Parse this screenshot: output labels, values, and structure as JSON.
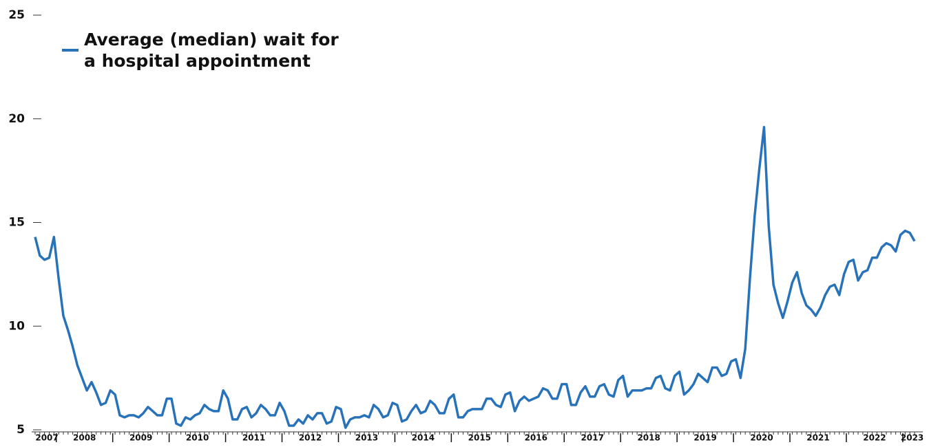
{
  "chart_data": {
    "type": "line",
    "categories": [
      null,
      null,
      "2007",
      null,
      null,
      null,
      null,
      null,
      null,
      null,
      "2008",
      null,
      null,
      null,
      null,
      null,
      null,
      null,
      null,
      null,
      null,
      null,
      "2009",
      null,
      null,
      null,
      null,
      null,
      null,
      null,
      null,
      null,
      null,
      null,
      "2010",
      null,
      null,
      null,
      null,
      null,
      null,
      null,
      null,
      null,
      null,
      null,
      "2011",
      null,
      null,
      null,
      null,
      null,
      null,
      null,
      null,
      null,
      null,
      null,
      "2012",
      null,
      null,
      null,
      null,
      null,
      null,
      null,
      null,
      null,
      null,
      null,
      "2013",
      null,
      null,
      null,
      null,
      null,
      null,
      null,
      null,
      null,
      null,
      null,
      "2014",
      null,
      null,
      null,
      null,
      null,
      null,
      null,
      null,
      null,
      null,
      null,
      "2015",
      null,
      null,
      null,
      null,
      null,
      null,
      null,
      null,
      null,
      null,
      null,
      "2016",
      null,
      null,
      null,
      null,
      null,
      null,
      null,
      null,
      null,
      null,
      null,
      "2017",
      null,
      null,
      null,
      null,
      null,
      null,
      null,
      null,
      null,
      null,
      null,
      "2018",
      null,
      null,
      null,
      null,
      null,
      null,
      null,
      null,
      null,
      null,
      null,
      "2019",
      null,
      null,
      null,
      null,
      null,
      null,
      null,
      null,
      null,
      null,
      null,
      "2020",
      null,
      null,
      null,
      null,
      null,
      null,
      null,
      null,
      null,
      null,
      null,
      "2021",
      null,
      null,
      null,
      null,
      null,
      null,
      null,
      null,
      null,
      null,
      null,
      "2022",
      null,
      null,
      null,
      null,
      null,
      null,
      null,
      "2023",
      null
    ],
    "series": [
      {
        "name": "Average (median) wait for a hospital appointment",
        "color": "#2872b9",
        "values": [
          14.3,
          13.4,
          13.2,
          13.3,
          14.3,
          12.3,
          10.5,
          9.8,
          9.0,
          8.1,
          7.5,
          6.9,
          7.3,
          6.8,
          6.2,
          6.3,
          6.9,
          6.7,
          5.7,
          5.6,
          5.7,
          5.7,
          5.6,
          5.8,
          6.1,
          5.9,
          5.7,
          5.7,
          6.5,
          6.5,
          5.3,
          5.2,
          5.6,
          5.5,
          5.7,
          5.8,
          6.2,
          6.0,
          5.9,
          5.9,
          6.9,
          6.5,
          5.5,
          5.5,
          6.0,
          6.1,
          5.6,
          5.8,
          6.2,
          6.0,
          5.7,
          5.7,
          6.3,
          5.9,
          5.2,
          5.2,
          5.5,
          5.3,
          5.7,
          5.5,
          5.8,
          5.8,
          5.3,
          5.4,
          6.1,
          6.0,
          5.1,
          5.5,
          5.6,
          5.6,
          5.7,
          5.6,
          6.2,
          6.0,
          5.6,
          5.7,
          6.3,
          6.2,
          5.4,
          5.5,
          5.9,
          6.2,
          5.8,
          5.9,
          6.4,
          6.2,
          5.8,
          5.8,
          6.5,
          6.7,
          5.6,
          5.6,
          5.9,
          6.0,
          6.0,
          6.0,
          6.5,
          6.5,
          6.2,
          6.1,
          6.7,
          6.8,
          5.9,
          6.4,
          6.6,
          6.4,
          6.5,
          6.6,
          7.0,
          6.9,
          6.5,
          6.5,
          7.2,
          7.2,
          6.2,
          6.2,
          6.8,
          7.1,
          6.6,
          6.6,
          7.1,
          7.2,
          6.7,
          6.6,
          7.4,
          7.6,
          6.6,
          6.9,
          6.9,
          6.9,
          7.0,
          7.0,
          7.5,
          7.6,
          7.0,
          6.9,
          7.6,
          7.8,
          6.7,
          6.9,
          7.2,
          7.7,
          7.5,
          7.3,
          8.0,
          8.0,
          7.6,
          7.7,
          8.3,
          8.4,
          7.5,
          8.9,
          12.3,
          15.3,
          17.6,
          19.6,
          14.8,
          12.0,
          11.1,
          10.4,
          11.2,
          12.1,
          12.6,
          11.6,
          11.0,
          10.8,
          10.5,
          10.9,
          11.5,
          11.9,
          12.0,
          11.5,
          12.5,
          13.1,
          13.2,
          12.2,
          12.6,
          12.7,
          13.3,
          13.3,
          13.8,
          14.0,
          13.9,
          13.6,
          14.4,
          14.6,
          14.5,
          14.1
        ]
      }
    ],
    "ylim": [
      5,
      25
    ],
    "yticks": [
      5,
      10,
      15,
      20,
      25
    ],
    "grid": false,
    "legend": "top-left"
  }
}
